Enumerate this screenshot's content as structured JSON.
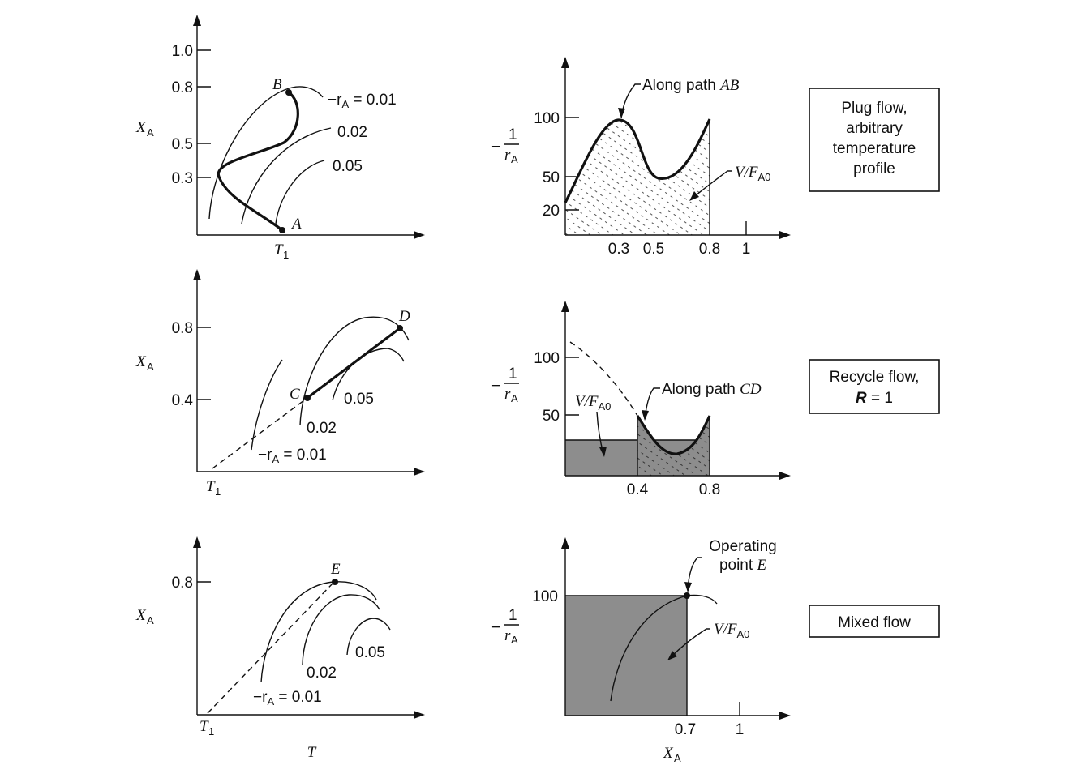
{
  "labels": {
    "xa": "X",
    "xa_sub": "A",
    "t_axis": "T",
    "t1": "T",
    "t1_sub": "1",
    "neg": "−",
    "one": "1",
    "r": "r",
    "r_sub": "A"
  },
  "row1": {
    "left": {
      "ticks": [
        "1.0",
        "0.8",
        "0.5",
        "0.3"
      ],
      "point_b": "B",
      "point_a": "A",
      "curve_labels": [
        "−r",
        "A",
        " = 0.01",
        "0.02",
        "0.05"
      ]
    },
    "right": {
      "ticks_y": [
        "100",
        "50",
        "20"
      ],
      "ticks_x": [
        "0.3",
        "0.5",
        "0.8",
        "1"
      ],
      "path_label": "Along path ",
      "path_name": "AB",
      "vf_label": "V/F",
      "vf_sub": "A0"
    },
    "box_lines": [
      "Plug flow,",
      "arbitrary",
      "temperature",
      "profile"
    ]
  },
  "row2": {
    "left": {
      "ticks": [
        "0.8",
        "0.4"
      ],
      "point_c": "C",
      "point_d": "D",
      "curve_labels": [
        "0.05",
        "0.02",
        "−r",
        "A",
        " = 0.01"
      ]
    },
    "right": {
      "ticks_y": [
        "100",
        "50"
      ],
      "ticks_x": [
        "0.4",
        "0.8"
      ],
      "path_label": "Along path ",
      "path_name": "CD",
      "vf_label": "V/F",
      "vf_sub": "A0"
    },
    "box_lines": [
      "Recycle flow,",
      "R",
      " = 1"
    ]
  },
  "row3": {
    "left": {
      "ticks": [
        "0.8"
      ],
      "point_e": "E",
      "curve_labels": [
        "0.05",
        "0.02",
        "−r",
        "A",
        " = 0.01"
      ]
    },
    "right": {
      "ticks_y": [
        "100"
      ],
      "ticks_x": [
        "0.7",
        "1"
      ],
      "op_label_1": "Operating",
      "op_label_2": "point ",
      "op_name": "E",
      "vf_label": "V/F",
      "vf_sub": "A0"
    },
    "box_lines": [
      "Mixed flow"
    ]
  }
}
